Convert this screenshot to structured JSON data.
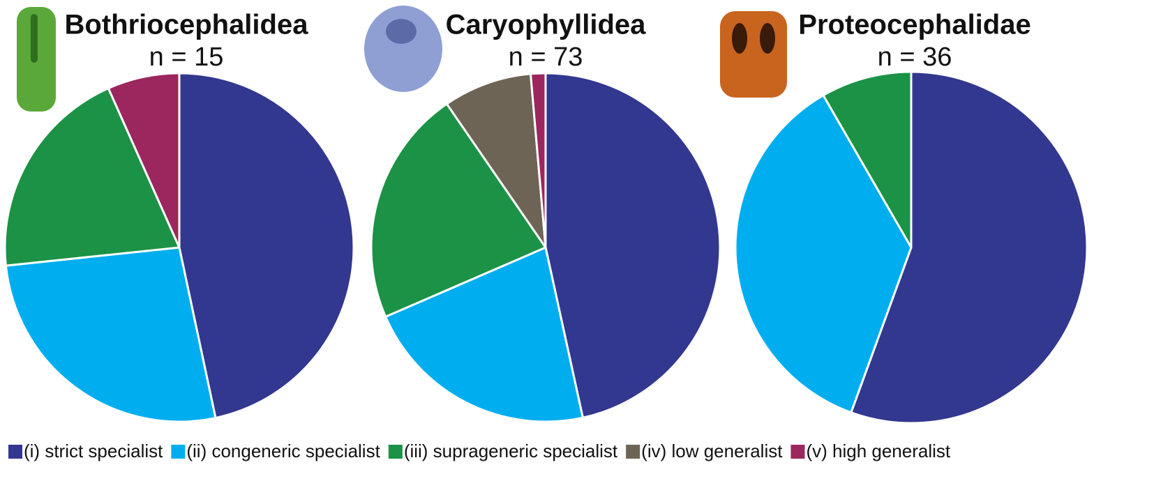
{
  "chart_data": [
    {
      "type": "pie",
      "title": "Bothriocephalidea",
      "subtitle": "n = 15",
      "values": [
        7,
        4,
        3,
        0,
        1
      ]
    },
    {
      "type": "pie",
      "title": "Caryophyllidea",
      "subtitle": "n = 73",
      "values": [
        34,
        16,
        16,
        6,
        1
      ]
    },
    {
      "type": "pie",
      "title": "Proteocephalidae",
      "subtitle": "n = 36",
      "values": [
        20,
        13,
        3,
        0,
        0
      ]
    }
  ],
  "legend": {
    "labels": [
      "(i) strict specialist",
      "(ii) congeneric specialist",
      "(iii) suprageneric specialist",
      "(iv) low generalist",
      "(v) high generalist"
    ],
    "colors": [
      "#32378f",
      "#00aeef",
      "#1b9245",
      "#6e6455",
      "#9b275e"
    ]
  }
}
